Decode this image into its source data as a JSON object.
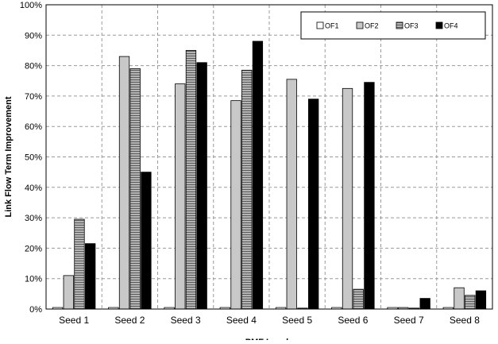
{
  "chart_data": {
    "type": "bar",
    "xlabel": "PMF Levels",
    "ylabel": "Link Flow Term Improvement",
    "ylim": [
      0,
      100
    ],
    "y_ticks": [
      0,
      10,
      20,
      30,
      40,
      50,
      60,
      70,
      80,
      90,
      100
    ],
    "y_tick_format": "percent",
    "grid": true,
    "legend_position": "top-right",
    "categories": [
      "Seed 1",
      "Seed 2",
      "Seed 3",
      "Seed 4",
      "Seed 5",
      "Seed 6",
      "Seed 7",
      "Seed 8"
    ],
    "series": [
      {
        "name": "OF1",
        "color": "#ffffff",
        "pattern": "none",
        "values": [
          0.5,
          0.5,
          0.5,
          0.5,
          0.5,
          0.5,
          0.5,
          0.5
        ]
      },
      {
        "name": "OF2",
        "color": "#c8c8c8",
        "pattern": "none",
        "values": [
          11,
          83,
          74,
          68.5,
          75.5,
          72.5,
          0.5,
          7
        ]
      },
      {
        "name": "OF3",
        "color": "#9a9a9a",
        "pattern": "hatched",
        "values": [
          29.5,
          79,
          85,
          78.5,
          0.3,
          6.5,
          0.3,
          4.5
        ]
      },
      {
        "name": "OF4",
        "color": "#000000",
        "pattern": "none",
        "values": [
          21.5,
          45,
          81,
          88,
          69,
          74.5,
          3.5,
          6
        ]
      }
    ]
  }
}
